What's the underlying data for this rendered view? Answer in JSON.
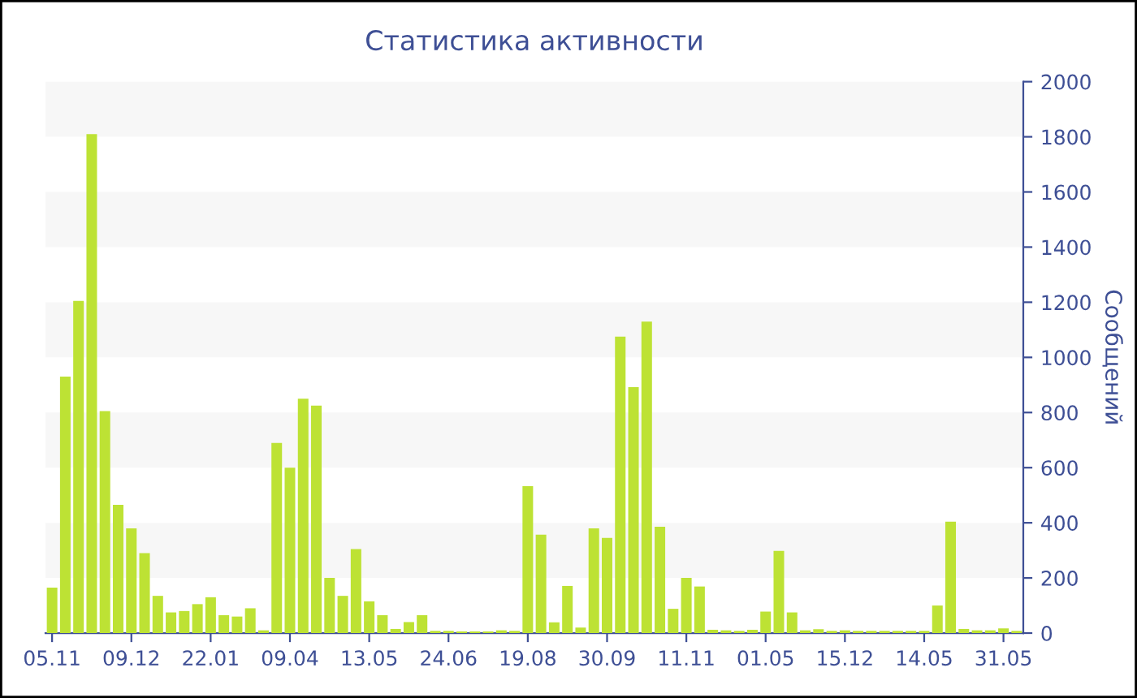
{
  "chart_data": {
    "type": "bar",
    "title": "Статистика активности",
    "ylabel": "Сообщений",
    "categories": [
      "05.11",
      null,
      null,
      null,
      null,
      null,
      "09.12",
      null,
      null,
      null,
      null,
      null,
      "22.01",
      null,
      null,
      null,
      null,
      null,
      "09.04",
      null,
      null,
      null,
      null,
      null,
      "13.05",
      null,
      null,
      null,
      null,
      null,
      "24.06",
      null,
      null,
      null,
      null,
      null,
      "19.08",
      null,
      null,
      null,
      null,
      null,
      "30.09",
      null,
      null,
      null,
      null,
      null,
      "11.11",
      null,
      null,
      null,
      null,
      null,
      "01.05",
      null,
      null,
      null,
      null,
      null,
      "15.12",
      null,
      null,
      null,
      null,
      null,
      "14.05",
      null,
      null,
      null,
      null,
      null,
      "31.05",
      null
    ],
    "values": [
      165,
      930,
      1205,
      1810,
      805,
      465,
      380,
      290,
      135,
      75,
      80,
      105,
      130,
      65,
      60,
      90,
      10,
      690,
      600,
      850,
      825,
      200,
      135,
      305,
      115,
      65,
      15,
      40,
      65,
      8,
      8,
      6,
      6,
      6,
      10,
      8,
      533,
      357,
      39,
      171,
      20,
      380,
      345,
      1075,
      892,
      1130,
      386,
      88,
      200,
      169,
      12,
      10,
      8,
      12,
      78,
      298,
      75,
      10,
      14,
      8,
      10,
      8,
      8,
      8,
      8,
      8,
      8,
      100,
      404,
      15,
      10,
      10,
      17,
      8
    ],
    "color": "#bde234",
    "ylim": [
      0,
      2000
    ],
    "yticks": [
      0,
      200,
      400,
      600,
      800,
      1000,
      1200,
      1400,
      1600,
      1800,
      2000
    ],
    "bands": [
      {
        "axis": "y",
        "from": 200,
        "to": 400,
        "color": "#f7f7f7"
      },
      {
        "axis": "y",
        "from": 600,
        "to": 800,
        "color": "#f7f7f7"
      },
      {
        "axis": "y",
        "from": 1000,
        "to": 1200,
        "color": "#f7f7f7"
      },
      {
        "axis": "y",
        "from": 1400,
        "to": 1600,
        "color": "#f7f7f7"
      },
      {
        "axis": "y",
        "from": 1800,
        "to": 2000,
        "color": "#f7f7f7"
      }
    ],
    "grid": false
  }
}
